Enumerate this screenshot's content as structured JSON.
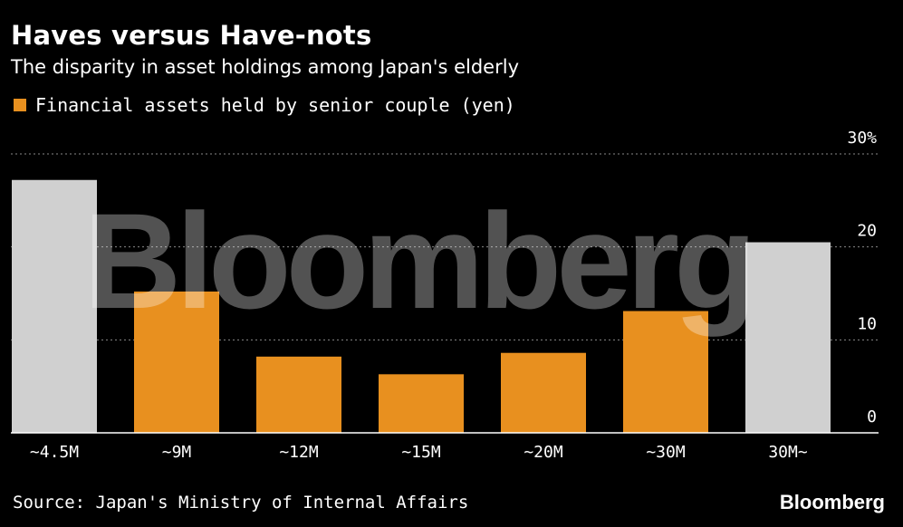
{
  "header": {
    "title": "Haves versus Have-nots",
    "subtitle": "The disparity in asset holdings among Japan's elderly"
  },
  "legend": {
    "label": "Financial assets held by senior couple (yen)"
  },
  "footer": {
    "source": "Source: Japan's Ministry of Internal Affairs",
    "brand": "Bloomberg"
  },
  "watermark": "Bloomberg",
  "colors": {
    "background": "#000000",
    "bar_primary": "#e8901f",
    "bar_highlight": "#d0d0d0",
    "grid": "#888888",
    "axis": "#ffffff"
  },
  "chart_data": {
    "type": "bar",
    "title": "Haves versus Have-nots",
    "subtitle": "The disparity in asset holdings among Japan's elderly",
    "categories": [
      "~4.5M",
      "~9M",
      "~12M",
      "~15M",
      "~20M",
      "~30M",
      "30M~"
    ],
    "values": [
      27.2,
      15.2,
      8.2,
      6.3,
      8.6,
      13.1,
      20.5
    ],
    "highlighted": [
      true,
      false,
      false,
      false,
      false,
      false,
      true
    ],
    "series_name": "Financial assets held by senior couple (yen)",
    "y_axis": {
      "position": "right",
      "ticks": [
        0,
        10,
        20,
        30
      ],
      "tick_labels": [
        "0",
        "10",
        "20",
        "30%"
      ],
      "ylim": [
        0,
        30
      ]
    },
    "xlabel": "",
    "ylabel": "",
    "grid": true,
    "legend_position": "top-left"
  }
}
